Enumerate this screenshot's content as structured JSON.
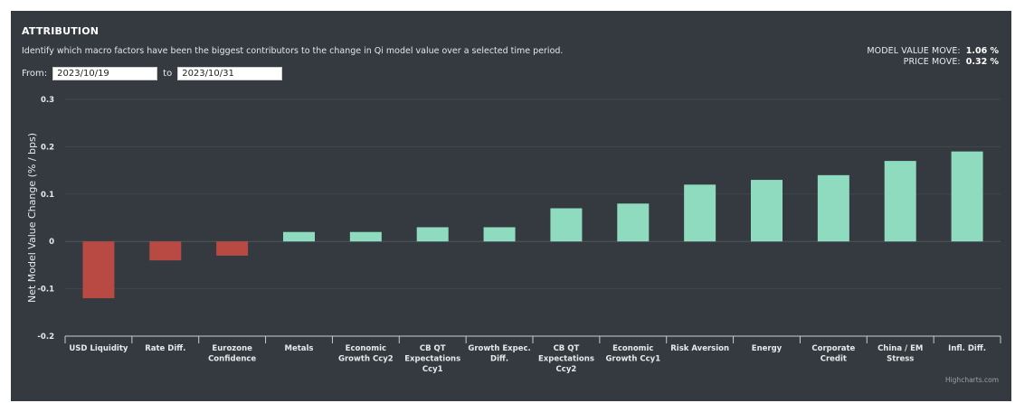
{
  "header": {
    "title": "ATTRIBUTION",
    "subtitle": "Identify which macro factors have been the biggest contributors to the change in Qi model value over a selected time period."
  },
  "summary": {
    "model_value_move_label": "MODEL VALUE MOVE:",
    "model_value_move": "1.06 %",
    "price_move_label": "PRICE MOVE:",
    "price_move": "0.32 %"
  },
  "date_range": {
    "from_label": "From:",
    "from_value": "2023/10/19",
    "to_label": "to",
    "to_value": "2023/10/31"
  },
  "credits": "Highcharts.com",
  "colors": {
    "positive": "#8edbbf",
    "negative": "#b84a43",
    "grid": "#40484d",
    "zero_line": "#4f585e",
    "axis_text": "#e6eaec",
    "background": "#343a3f"
  },
  "chart_data": {
    "type": "bar",
    "title": "",
    "xlabel": "",
    "ylabel": "Net Model Value Change (% / bps)",
    "ylim": [
      -0.2,
      0.3
    ],
    "yticks": [
      -0.2,
      -0.1,
      0,
      0.1,
      0.2,
      0.3
    ],
    "ytick_labels": [
      "-0.2",
      "-0.1",
      "0",
      "0.1",
      "0.2",
      "0.3"
    ],
    "grid": true,
    "categories": [
      "USD Liquidity",
      "Rate Diff.",
      "Eurozone Confidence",
      "Metals",
      "Economic Growth Ccy2",
      "CB QT Expectations Ccy1",
      "Growth Expec. Diff.",
      "CB QT Expectations Ccy2",
      "Economic Growth Ccy1",
      "Risk Aversion",
      "Energy",
      "Corporate Credit",
      "China / EM Stress",
      "Infl. Diff."
    ],
    "category_lines": [
      [
        "USD Liquidity"
      ],
      [
        "Rate Diff."
      ],
      [
        "Eurozone",
        "Confidence"
      ],
      [
        "Metals"
      ],
      [
        "Economic",
        "Growth Ccy2"
      ],
      [
        "CB QT",
        "Expectations",
        "Ccy1"
      ],
      [
        "Growth Expec.",
        "Diff."
      ],
      [
        "CB QT",
        "Expectations",
        "Ccy2"
      ],
      [
        "Economic",
        "Growth Ccy1"
      ],
      [
        "Risk Aversion"
      ],
      [
        "Energy"
      ],
      [
        "Corporate",
        "Credit"
      ],
      [
        "China / EM",
        "Stress"
      ],
      [
        "Infl. Diff."
      ]
    ],
    "values": [
      -0.12,
      -0.04,
      -0.03,
      0.02,
      0.02,
      0.03,
      0.03,
      0.07,
      0.08,
      0.12,
      0.13,
      0.14,
      0.17,
      0.19
    ]
  }
}
